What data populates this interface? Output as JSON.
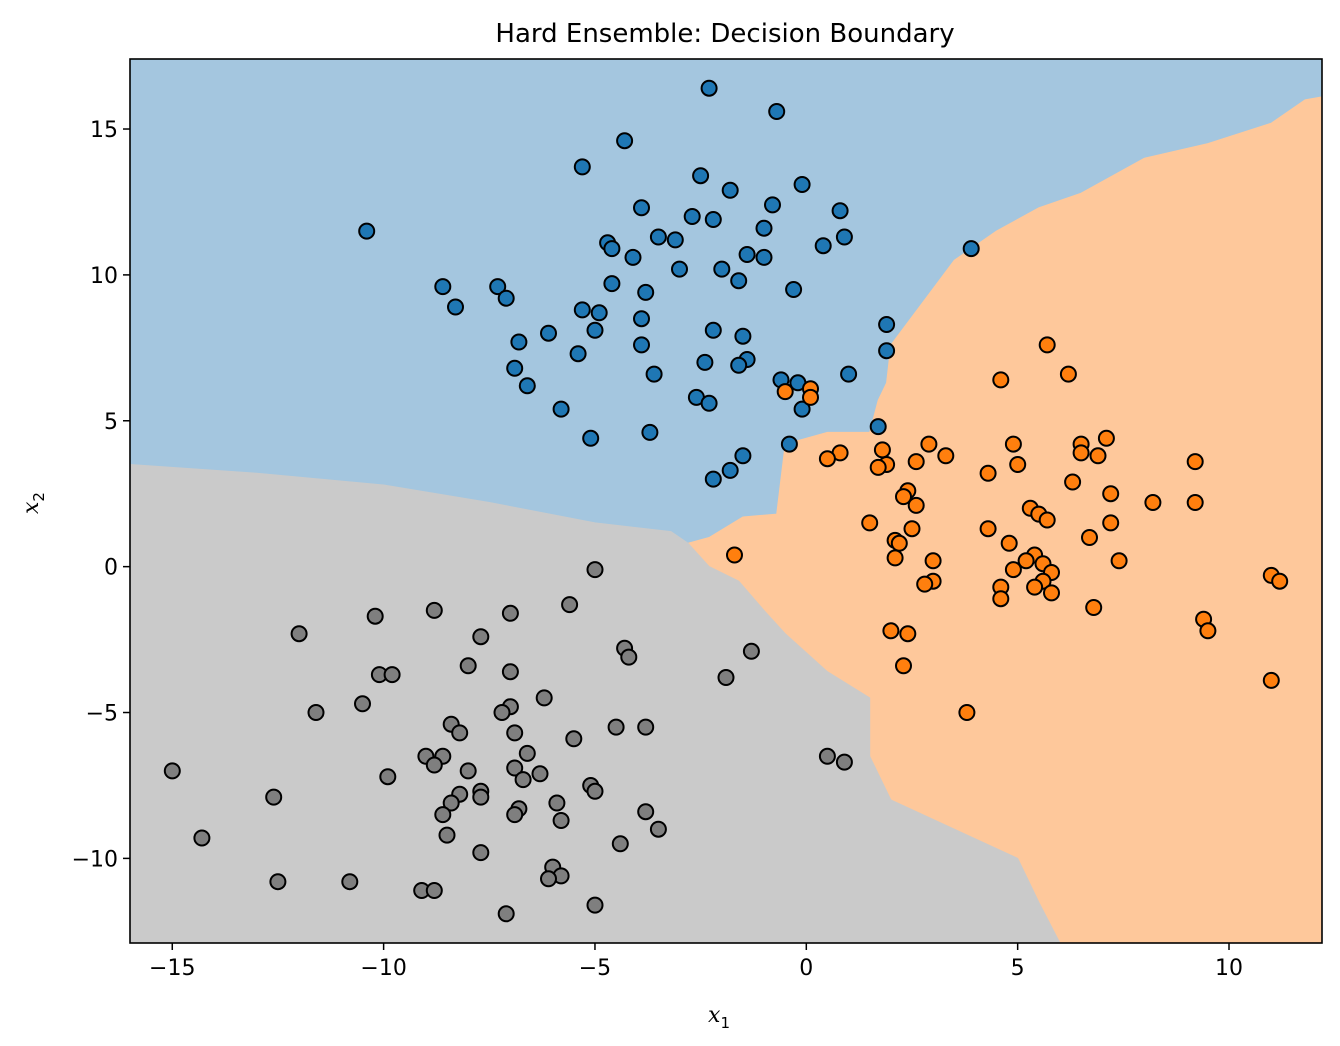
{
  "chart_data": {
    "type": "scatter",
    "title": "Hard Ensemble: Decision Boundary",
    "xlabel": "x",
    "xlabel_sub": "1",
    "ylabel": "x",
    "ylabel_sub": "2",
    "xlim": [
      -16,
      12.2
    ],
    "ylim": [
      -12.9,
      17.4
    ],
    "xticks": [
      -15,
      -10,
      -5,
      0,
      5,
      10
    ],
    "yticks": [
      -10,
      -5,
      0,
      5,
      10,
      15
    ],
    "grid": false,
    "regions": [
      {
        "class": 0,
        "fill": "#a4c6df",
        "polygon": [
          [
            -16,
            17.4
          ],
          [
            12.2,
            17.4
          ],
          [
            12.2,
            16.1
          ],
          [
            11.8,
            16.0
          ],
          [
            11.0,
            15.2
          ],
          [
            9.5,
            14.5
          ],
          [
            8.0,
            14.0
          ],
          [
            6.5,
            12.8
          ],
          [
            5.5,
            12.3
          ],
          [
            4.5,
            11.5
          ],
          [
            3.5,
            10.5
          ],
          [
            2.0,
            7.6
          ],
          [
            1.9,
            6.3
          ],
          [
            1.7,
            5.7
          ],
          [
            1.5,
            4.6
          ],
          [
            0.5,
            4.6
          ],
          [
            -0.5,
            4.2
          ],
          [
            -0.7,
            1.8
          ],
          [
            -1.5,
            1.7
          ],
          [
            -2.3,
            1.0
          ],
          [
            -2.8,
            0.8
          ],
          [
            -3.2,
            1.2
          ],
          [
            -5,
            1.5
          ],
          [
            -7.5,
            2.2
          ],
          [
            -10,
            2.8
          ],
          [
            -13,
            3.2
          ],
          [
            -16,
            3.5
          ]
        ]
      },
      {
        "class": 1,
        "fill": "#fec89b",
        "polygon": [
          [
            12.2,
            16.1
          ],
          [
            11.8,
            16.0
          ],
          [
            11.0,
            15.2
          ],
          [
            9.5,
            14.5
          ],
          [
            8.0,
            14.0
          ],
          [
            6.5,
            12.8
          ],
          [
            5.5,
            12.3
          ],
          [
            4.5,
            11.5
          ],
          [
            3.5,
            10.5
          ],
          [
            2.0,
            7.6
          ],
          [
            1.9,
            6.3
          ],
          [
            1.7,
            5.7
          ],
          [
            1.5,
            4.6
          ],
          [
            0.5,
            4.6
          ],
          [
            -0.5,
            4.2
          ],
          [
            -0.7,
            1.8
          ],
          [
            -1.5,
            1.7
          ],
          [
            -2.3,
            1.0
          ],
          [
            -2.8,
            0.8
          ],
          [
            -2.3,
            0.0
          ],
          [
            -1.6,
            -0.5
          ],
          [
            -1.0,
            -1.5
          ],
          [
            -0.5,
            -2.3
          ],
          [
            0.5,
            -3.6
          ],
          [
            1.5,
            -4.5
          ],
          [
            1.5,
            -6.5
          ],
          [
            2.0,
            -8.0
          ],
          [
            3.5,
            -9.0
          ],
          [
            5.0,
            -10.0
          ],
          [
            5.5,
            -11.5
          ],
          [
            6.0,
            -12.9
          ],
          [
            12.2,
            -12.9
          ]
        ]
      },
      {
        "class": 2,
        "fill": "#cacaca",
        "polygon": [
          [
            -16,
            3.5
          ],
          [
            -13,
            3.2
          ],
          [
            -10,
            2.8
          ],
          [
            -7.5,
            2.2
          ],
          [
            -5,
            1.5
          ],
          [
            -3.2,
            1.2
          ],
          [
            -2.8,
            0.8
          ],
          [
            -2.3,
            0.0
          ],
          [
            -1.6,
            -0.5
          ],
          [
            -1.0,
            -1.5
          ],
          [
            -0.5,
            -2.3
          ],
          [
            0.5,
            -3.6
          ],
          [
            1.5,
            -4.5
          ],
          [
            1.5,
            -6.5
          ],
          [
            2.0,
            -8.0
          ],
          [
            3.5,
            -9.0
          ],
          [
            5.0,
            -10.0
          ],
          [
            5.5,
            -11.5
          ],
          [
            6.0,
            -12.9
          ],
          [
            -16,
            -12.9
          ]
        ]
      }
    ],
    "series": [
      {
        "class": 0,
        "color": "#1f77b4",
        "points": [
          [
            -2.3,
            16.4
          ],
          [
            -0.7,
            15.6
          ],
          [
            -4.3,
            14.6
          ],
          [
            -5.3,
            13.7
          ],
          [
            -2.5,
            13.4
          ],
          [
            -1.8,
            12.9
          ],
          [
            -0.1,
            13.1
          ],
          [
            -3.9,
            12.3
          ],
          [
            -0.8,
            12.4
          ],
          [
            -2.7,
            12.0
          ],
          [
            -2.2,
            11.9
          ],
          [
            0.8,
            12.2
          ],
          [
            -10.4,
            11.5
          ],
          [
            -1.0,
            11.6
          ],
          [
            -3.5,
            11.3
          ],
          [
            -3.1,
            11.2
          ],
          [
            -4.7,
            11.1
          ],
          [
            0.9,
            11.3
          ],
          [
            0.4,
            11.0
          ],
          [
            3.9,
            10.9
          ],
          [
            -4.6,
            10.9
          ],
          [
            -1.4,
            10.7
          ],
          [
            -4.1,
            10.6
          ],
          [
            -1.0,
            10.6
          ],
          [
            -3.0,
            10.2
          ],
          [
            -2.0,
            10.2
          ],
          [
            -1.6,
            9.8
          ],
          [
            -8.6,
            9.6
          ],
          [
            -7.3,
            9.6
          ],
          [
            -4.6,
            9.7
          ],
          [
            -7.1,
            9.2
          ],
          [
            -3.8,
            9.4
          ],
          [
            -0.3,
            9.5
          ],
          [
            -8.3,
            8.9
          ],
          [
            -5.3,
            8.8
          ],
          [
            -4.9,
            8.7
          ],
          [
            -3.9,
            8.5
          ],
          [
            -5.0,
            8.1
          ],
          [
            -2.2,
            8.1
          ],
          [
            -6.1,
            8.0
          ],
          [
            -1.5,
            7.9
          ],
          [
            -6.8,
            7.7
          ],
          [
            -3.9,
            7.6
          ],
          [
            1.9,
            8.3
          ],
          [
            -5.4,
            7.3
          ],
          [
            1.9,
            7.4
          ],
          [
            -1.4,
            7.1
          ],
          [
            -2.4,
            7.0
          ],
          [
            -1.6,
            6.9
          ],
          [
            -6.9,
            6.8
          ],
          [
            -3.6,
            6.6
          ],
          [
            -0.6,
            6.4
          ],
          [
            -6.6,
            6.2
          ],
          [
            -0.2,
            6.3
          ],
          [
            1.0,
            6.6
          ],
          [
            -2.6,
            5.8
          ],
          [
            -2.3,
            5.6
          ],
          [
            -5.8,
            5.4
          ],
          [
            -0.1,
            5.4
          ],
          [
            -3.7,
            4.6
          ],
          [
            -5.1,
            4.4
          ],
          [
            -0.4,
            4.2
          ],
          [
            1.7,
            4.8
          ],
          [
            -1.5,
            3.8
          ],
          [
            -1.8,
            3.3
          ],
          [
            -2.2,
            3.0
          ]
        ]
      },
      {
        "class": 1,
        "color": "#ff7f0e",
        "points": [
          [
            5.7,
            7.6
          ],
          [
            6.2,
            6.6
          ],
          [
            4.6,
            6.4
          ],
          [
            -0.5,
            6.0
          ],
          [
            0.1,
            6.1
          ],
          [
            0.1,
            5.8
          ],
          [
            7.1,
            4.4
          ],
          [
            6.5,
            4.2
          ],
          [
            4.9,
            4.2
          ],
          [
            2.9,
            4.2
          ],
          [
            1.8,
            4.0
          ],
          [
            0.8,
            3.9
          ],
          [
            6.5,
            3.9
          ],
          [
            6.9,
            3.8
          ],
          [
            3.3,
            3.8
          ],
          [
            0.5,
            3.7
          ],
          [
            2.6,
            3.6
          ],
          [
            9.2,
            3.6
          ],
          [
            1.9,
            3.5
          ],
          [
            5.0,
            3.5
          ],
          [
            1.7,
            3.4
          ],
          [
            4.3,
            3.2
          ],
          [
            6.3,
            2.9
          ],
          [
            2.4,
            2.6
          ],
          [
            7.2,
            2.5
          ],
          [
            2.3,
            2.4
          ],
          [
            8.2,
            2.2
          ],
          [
            9.2,
            2.2
          ],
          [
            2.6,
            2.1
          ],
          [
            5.3,
            2.0
          ],
          [
            5.5,
            1.8
          ],
          [
            5.7,
            1.6
          ],
          [
            1.5,
            1.5
          ],
          [
            7.2,
            1.5
          ],
          [
            4.3,
            1.3
          ],
          [
            2.5,
            1.3
          ],
          [
            6.7,
            1.0
          ],
          [
            2.1,
            0.9
          ],
          [
            2.2,
            0.8
          ],
          [
            4.8,
            0.8
          ],
          [
            -1.7,
            0.4
          ],
          [
            5.4,
            0.4
          ],
          [
            2.1,
            0.3
          ],
          [
            3.0,
            0.2
          ],
          [
            7.4,
            0.2
          ],
          [
            5.2,
            0.2
          ],
          [
            5.6,
            0.1
          ],
          [
            4.9,
            -0.1
          ],
          [
            5.8,
            -0.2
          ],
          [
            3.0,
            -0.5
          ],
          [
            5.6,
            -0.5
          ],
          [
            2.8,
            -0.6
          ],
          [
            5.4,
            -0.7
          ],
          [
            4.6,
            -0.7
          ],
          [
            5.8,
            -0.9
          ],
          [
            4.6,
            -1.1
          ],
          [
            6.8,
            -1.4
          ],
          [
            11.0,
            -0.3
          ],
          [
            11.2,
            -0.5
          ],
          [
            9.4,
            -1.8
          ],
          [
            9.5,
            -2.2
          ],
          [
            2.0,
            -2.2
          ],
          [
            2.4,
            -2.3
          ],
          [
            2.3,
            -3.4
          ],
          [
            11.0,
            -3.9
          ],
          [
            3.8,
            -5.0
          ]
        ]
      },
      {
        "class": 2,
        "color": "#7f7f7f",
        "points": [
          [
            -5.0,
            -0.1
          ],
          [
            -5.6,
            -1.3
          ],
          [
            -8.8,
            -1.5
          ],
          [
            -7.0,
            -1.6
          ],
          [
            -10.2,
            -1.7
          ],
          [
            -12.0,
            -2.3
          ],
          [
            -7.7,
            -2.4
          ],
          [
            -4.3,
            -2.8
          ],
          [
            -4.2,
            -3.1
          ],
          [
            -1.3,
            -2.9
          ],
          [
            -8.0,
            -3.4
          ],
          [
            -7.0,
            -3.6
          ],
          [
            -10.1,
            -3.7
          ],
          [
            -9.8,
            -3.7
          ],
          [
            -1.9,
            -3.8
          ],
          [
            -6.2,
            -4.5
          ],
          [
            -10.5,
            -4.7
          ],
          [
            -11.6,
            -5.0
          ],
          [
            -7.0,
            -4.8
          ],
          [
            -7.2,
            -5.0
          ],
          [
            -8.4,
            -5.4
          ],
          [
            -4.5,
            -5.5
          ],
          [
            -3.8,
            -5.5
          ],
          [
            -8.2,
            -5.7
          ],
          [
            -6.9,
            -5.7
          ],
          [
            -5.5,
            -5.9
          ],
          [
            -6.6,
            -6.4
          ],
          [
            -9.0,
            -6.5
          ],
          [
            -8.6,
            -6.5
          ],
          [
            0.5,
            -6.5
          ],
          [
            0.9,
            -6.7
          ],
          [
            -8.8,
            -6.8
          ],
          [
            -6.9,
            -6.9
          ],
          [
            -15.0,
            -7.0
          ],
          [
            -8.0,
            -7.0
          ],
          [
            -6.3,
            -7.1
          ],
          [
            -9.9,
            -7.2
          ],
          [
            -6.7,
            -7.3
          ],
          [
            -5.1,
            -7.5
          ],
          [
            -5.0,
            -7.7
          ],
          [
            -7.7,
            -7.7
          ],
          [
            -7.7,
            -7.9
          ],
          [
            -8.2,
            -7.8
          ],
          [
            -12.6,
            -7.9
          ],
          [
            -5.9,
            -8.1
          ],
          [
            -8.4,
            -8.1
          ],
          [
            -6.8,
            -8.3
          ],
          [
            -3.8,
            -8.4
          ],
          [
            -6.9,
            -8.5
          ],
          [
            -8.6,
            -8.5
          ],
          [
            -5.8,
            -8.7
          ],
          [
            -3.5,
            -9.0
          ],
          [
            -8.5,
            -9.2
          ],
          [
            -14.3,
            -9.3
          ],
          [
            -4.4,
            -9.5
          ],
          [
            -7.7,
            -9.8
          ],
          [
            -6.0,
            -10.3
          ],
          [
            -5.8,
            -10.6
          ],
          [
            -6.1,
            -10.7
          ],
          [
            -12.5,
            -10.8
          ],
          [
            -10.8,
            -10.8
          ],
          [
            -9.1,
            -11.1
          ],
          [
            -8.8,
            -11.1
          ],
          [
            -5.0,
            -11.6
          ],
          [
            -7.1,
            -11.9
          ]
        ]
      }
    ]
  }
}
